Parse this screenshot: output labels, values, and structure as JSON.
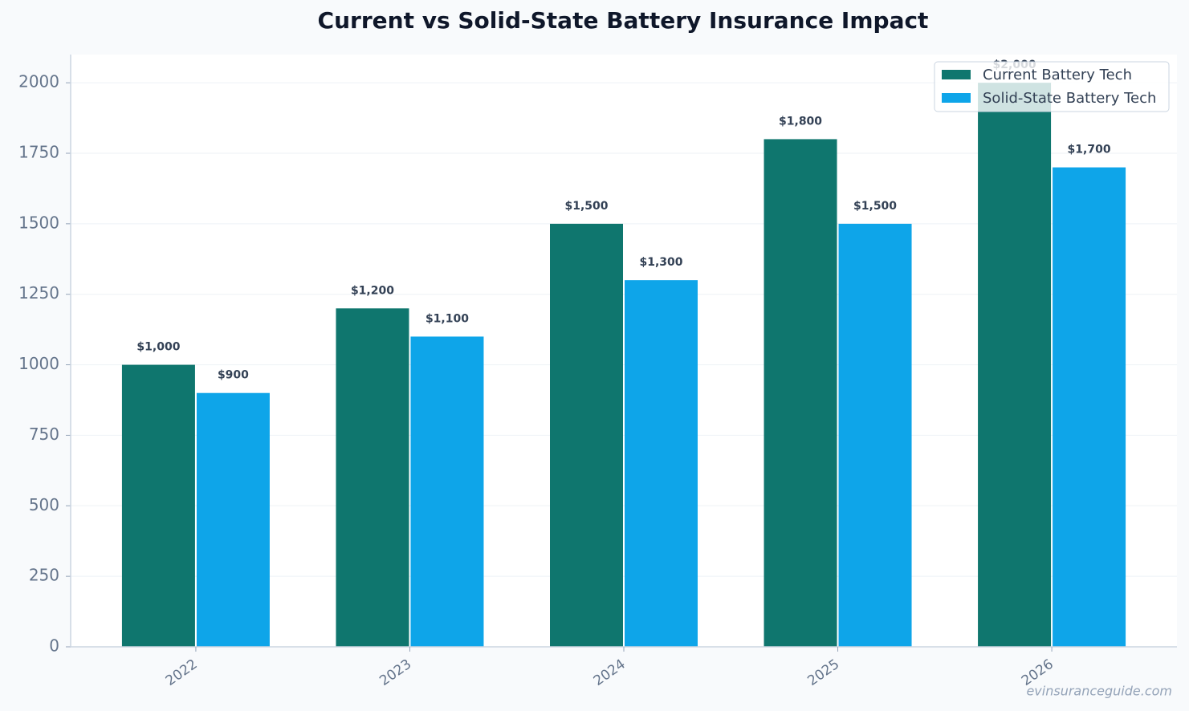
{
  "chart_data": {
    "type": "bar",
    "title": "Current vs Solid-State Battery Insurance Impact",
    "categories": [
      "2022",
      "2023",
      "2024",
      "2025",
      "2026"
    ],
    "series": [
      {
        "name": "Current Battery Tech",
        "color": "#0f766e",
        "values": [
          1000,
          1200,
          1500,
          1800,
          2000
        ],
        "value_labels": [
          "$1,000",
          "$1,200",
          "$1,500",
          "$1,800",
          "$2,000"
        ]
      },
      {
        "name": "Solid-State Battery Tech",
        "color": "#0ea5e9",
        "values": [
          900,
          1100,
          1300,
          1500,
          1700
        ],
        "value_labels": [
          "$900",
          "$1,100",
          "$1,300",
          "$1,500",
          "$1,700"
        ]
      }
    ],
    "ylim": [
      0,
      2100
    ],
    "yticks": [
      0,
      250,
      500,
      750,
      1000,
      1250,
      1500,
      1750,
      2000
    ],
    "grid": true,
    "legend": "upper right",
    "watermark": "evinsuranceguide.com"
  }
}
